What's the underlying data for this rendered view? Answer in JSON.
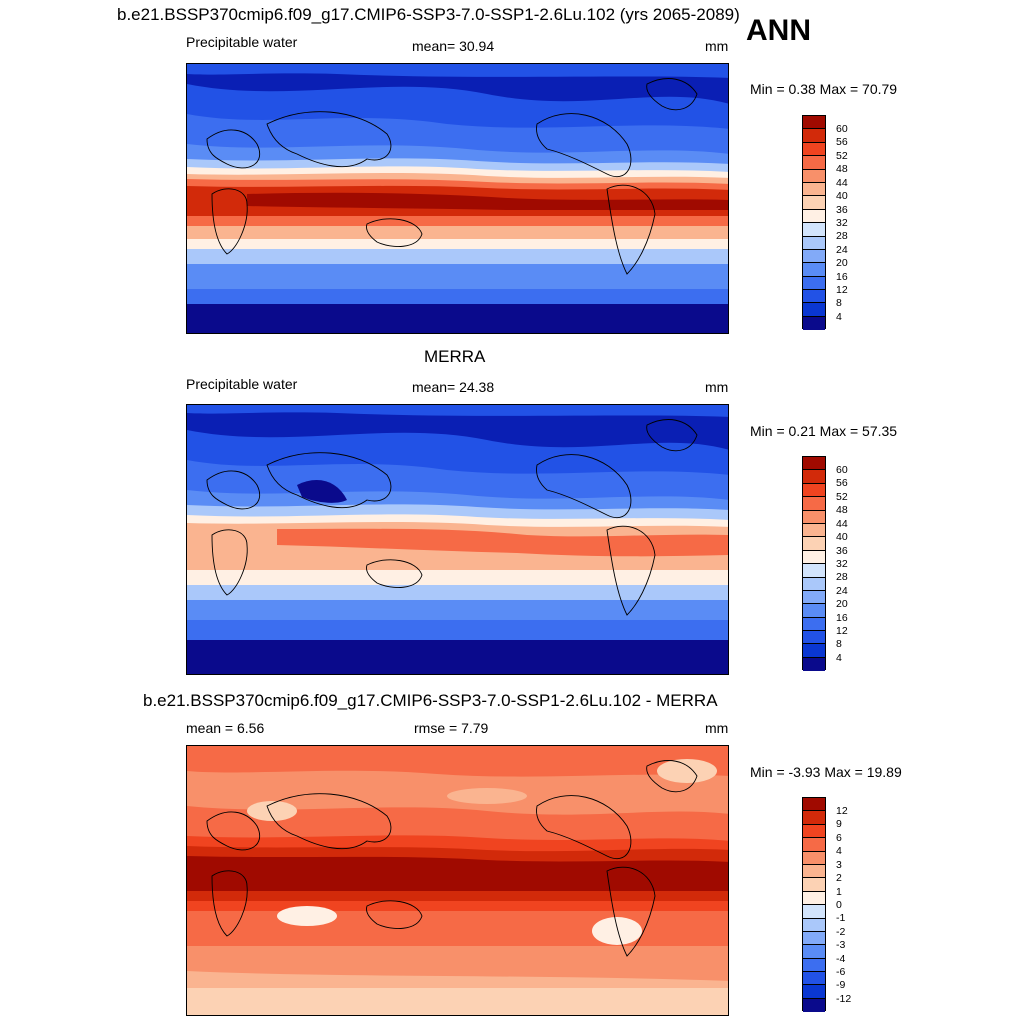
{
  "season": "ANN",
  "colors": {
    "pw": [
      "#0a0a8c",
      "#0a1fb4",
      "#0a37d2",
      "#2252e6",
      "#3c6ef0",
      "#5a8cf5",
      "#82aaf8",
      "#aac8fa",
      "#d2e4fc",
      "#fff0e4",
      "#fcd2b4",
      "#fab490",
      "#f8906a",
      "#f66a46",
      "#f04420",
      "#d22a0a",
      "#a00a00"
    ],
    "diff": [
      "#0a0a8c",
      "#0a1fb4",
      "#0a37d2",
      "#2252e6",
      "#3c6ef0",
      "#5a8cf5",
      "#82aaf8",
      "#aac8fa",
      "#d2e4fc",
      "#fff0e4",
      "#fcd2b4",
      "#fab490",
      "#f8906a",
      "#f66a46",
      "#f04420",
      "#d22a0a",
      "#a00a00"
    ]
  },
  "panels": [
    {
      "title": "b.e21.BSSP370cmip6.f09_g17.CMIP6-SSP3-7.0-SSP1-2.6Lu.102 (yrs 2065-2089)",
      "left_label": "Precipitable water",
      "center_label": "mean=  30.94",
      "units": "mm",
      "minmax": "Min =   0.38 Max =  70.79",
      "levels": [
        "60",
        "56",
        "52",
        "48",
        "44",
        "40",
        "36",
        "32",
        "28",
        "24",
        "20",
        "16",
        "12",
        "8",
        "4"
      ]
    },
    {
      "title": "MERRA",
      "left_label": "Precipitable water",
      "center_label": "mean=  24.38",
      "units": "mm",
      "minmax": "Min =   0.21 Max =  57.35",
      "levels": [
        "60",
        "56",
        "52",
        "48",
        "44",
        "40",
        "36",
        "32",
        "28",
        "24",
        "20",
        "16",
        "12",
        "8",
        "4"
      ]
    },
    {
      "title": "b.e21.BSSP370cmip6.f09_g17.CMIP6-SSP3-7.0-SSP1-2.6Lu.102 - MERRA",
      "left_label": "mean =   6.56",
      "center_label": "rmse =   7.79",
      "units": "mm",
      "minmax": "Min =  -3.93 Max =  19.89",
      "levels": [
        "12",
        "9",
        "6",
        "4",
        "3",
        "2",
        "1",
        "0",
        "-1",
        "-2",
        "-3",
        "-4",
        "-6",
        "-9",
        "-12"
      ]
    }
  ]
}
